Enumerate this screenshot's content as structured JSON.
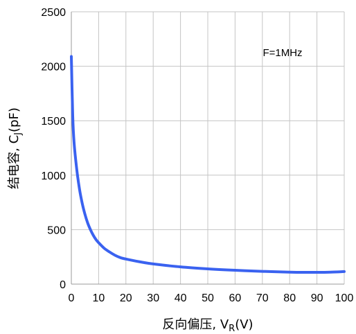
{
  "chart_data": {
    "type": "line",
    "title": "",
    "xlabel": "反向偏压, V",
    "xlabel_sub": "R",
    "xlabel_suffix": "(V)",
    "ylabel": "结电容, C",
    "ylabel_sub": "J",
    "ylabel_suffix": "(pF)",
    "annotation": "F=1MHz",
    "xlim": [
      0,
      100
    ],
    "ylim": [
      0,
      2500
    ],
    "xticks": [
      0,
      10,
      20,
      30,
      40,
      50,
      60,
      70,
      80,
      90,
      100
    ],
    "yticks": [
      0,
      500,
      1000,
      1500,
      2000,
      2500
    ],
    "grid": true,
    "legend": "none",
    "series": [
      {
        "color": "#3a62f0",
        "x": [
          0,
          0.5,
          1,
          2,
          3,
          4,
          5,
          6,
          7,
          8,
          9,
          10,
          12,
          14,
          16,
          18,
          20,
          25,
          30,
          40,
          50,
          60,
          70,
          80,
          85,
          90,
          95,
          100
        ],
        "y": [
          2090,
          1550,
          1300,
          1050,
          870,
          740,
          640,
          560,
          500,
          450,
          410,
          380,
          330,
          295,
          265,
          243,
          230,
          205,
          185,
          158,
          140,
          127,
          117,
          110,
          108,
          108,
          110,
          115
        ]
      }
    ]
  }
}
